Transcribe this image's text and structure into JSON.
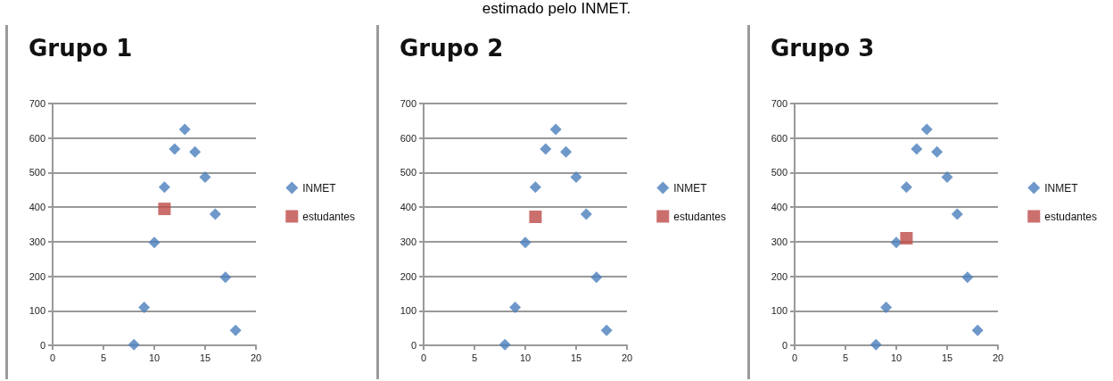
{
  "chart_data": [
    {
      "type": "scatter",
      "title": "Grupo 1",
      "annotations": [
        "estimado pelo INMET."
      ],
      "xlim": [
        0,
        20
      ],
      "xticks": [
        0,
        5,
        10,
        15,
        20
      ],
      "ylim": [
        0,
        700
      ],
      "yticks": [
        0,
        100,
        200,
        300,
        400,
        500,
        600,
        700
      ],
      "grid": "y",
      "legend": "right",
      "series": [
        {
          "name": "INMET",
          "color": "#4a7ebb",
          "marker": "diamond",
          "x": [
            8,
            9,
            10,
            11,
            12,
            13,
            14,
            15,
            16,
            17,
            18
          ],
          "values": [
            2,
            110,
            298,
            458,
            568,
            625,
            560,
            487,
            380,
            197,
            43
          ]
        },
        {
          "name": "estudantes",
          "color": "#be4b48",
          "marker": "square",
          "x": [
            11
          ],
          "values": [
            395
          ]
        }
      ]
    },
    {
      "type": "scatter",
      "title": "Grupo 2",
      "xlim": [
        0,
        20
      ],
      "xticks": [
        0,
        5,
        10,
        15,
        20
      ],
      "ylim": [
        0,
        700
      ],
      "yticks": [
        0,
        100,
        200,
        300,
        400,
        500,
        600,
        700
      ],
      "grid": "y",
      "legend": "right",
      "series": [
        {
          "name": "INMET",
          "color": "#4a7ebb",
          "marker": "diamond",
          "x": [
            8,
            9,
            10,
            11,
            12,
            13,
            14,
            15,
            16,
            17,
            18
          ],
          "values": [
            2,
            110,
            298,
            458,
            568,
            625,
            560,
            487,
            380,
            197,
            43
          ]
        },
        {
          "name": "estudantes",
          "color": "#be4b48",
          "marker": "square",
          "x": [
            11
          ],
          "values": [
            372
          ]
        }
      ]
    },
    {
      "type": "scatter",
      "title": "Grupo 3",
      "xlim": [
        0,
        20
      ],
      "xticks": [
        0,
        5,
        10,
        15,
        20
      ],
      "ylim": [
        0,
        700
      ],
      "yticks": [
        0,
        100,
        200,
        300,
        400,
        500,
        600,
        700
      ],
      "grid": "y",
      "legend": "right",
      "series": [
        {
          "name": "INMET",
          "color": "#4a7ebb",
          "marker": "diamond",
          "x": [
            8,
            9,
            10,
            11,
            12,
            13,
            14,
            15,
            16,
            17,
            18
          ],
          "values": [
            2,
            110,
            298,
            458,
            568,
            625,
            560,
            487,
            380,
            197,
            43
          ]
        },
        {
          "name": "estudantes",
          "color": "#be4b48",
          "marker": "square",
          "x": [
            11
          ],
          "values": [
            310
          ]
        }
      ]
    }
  ]
}
